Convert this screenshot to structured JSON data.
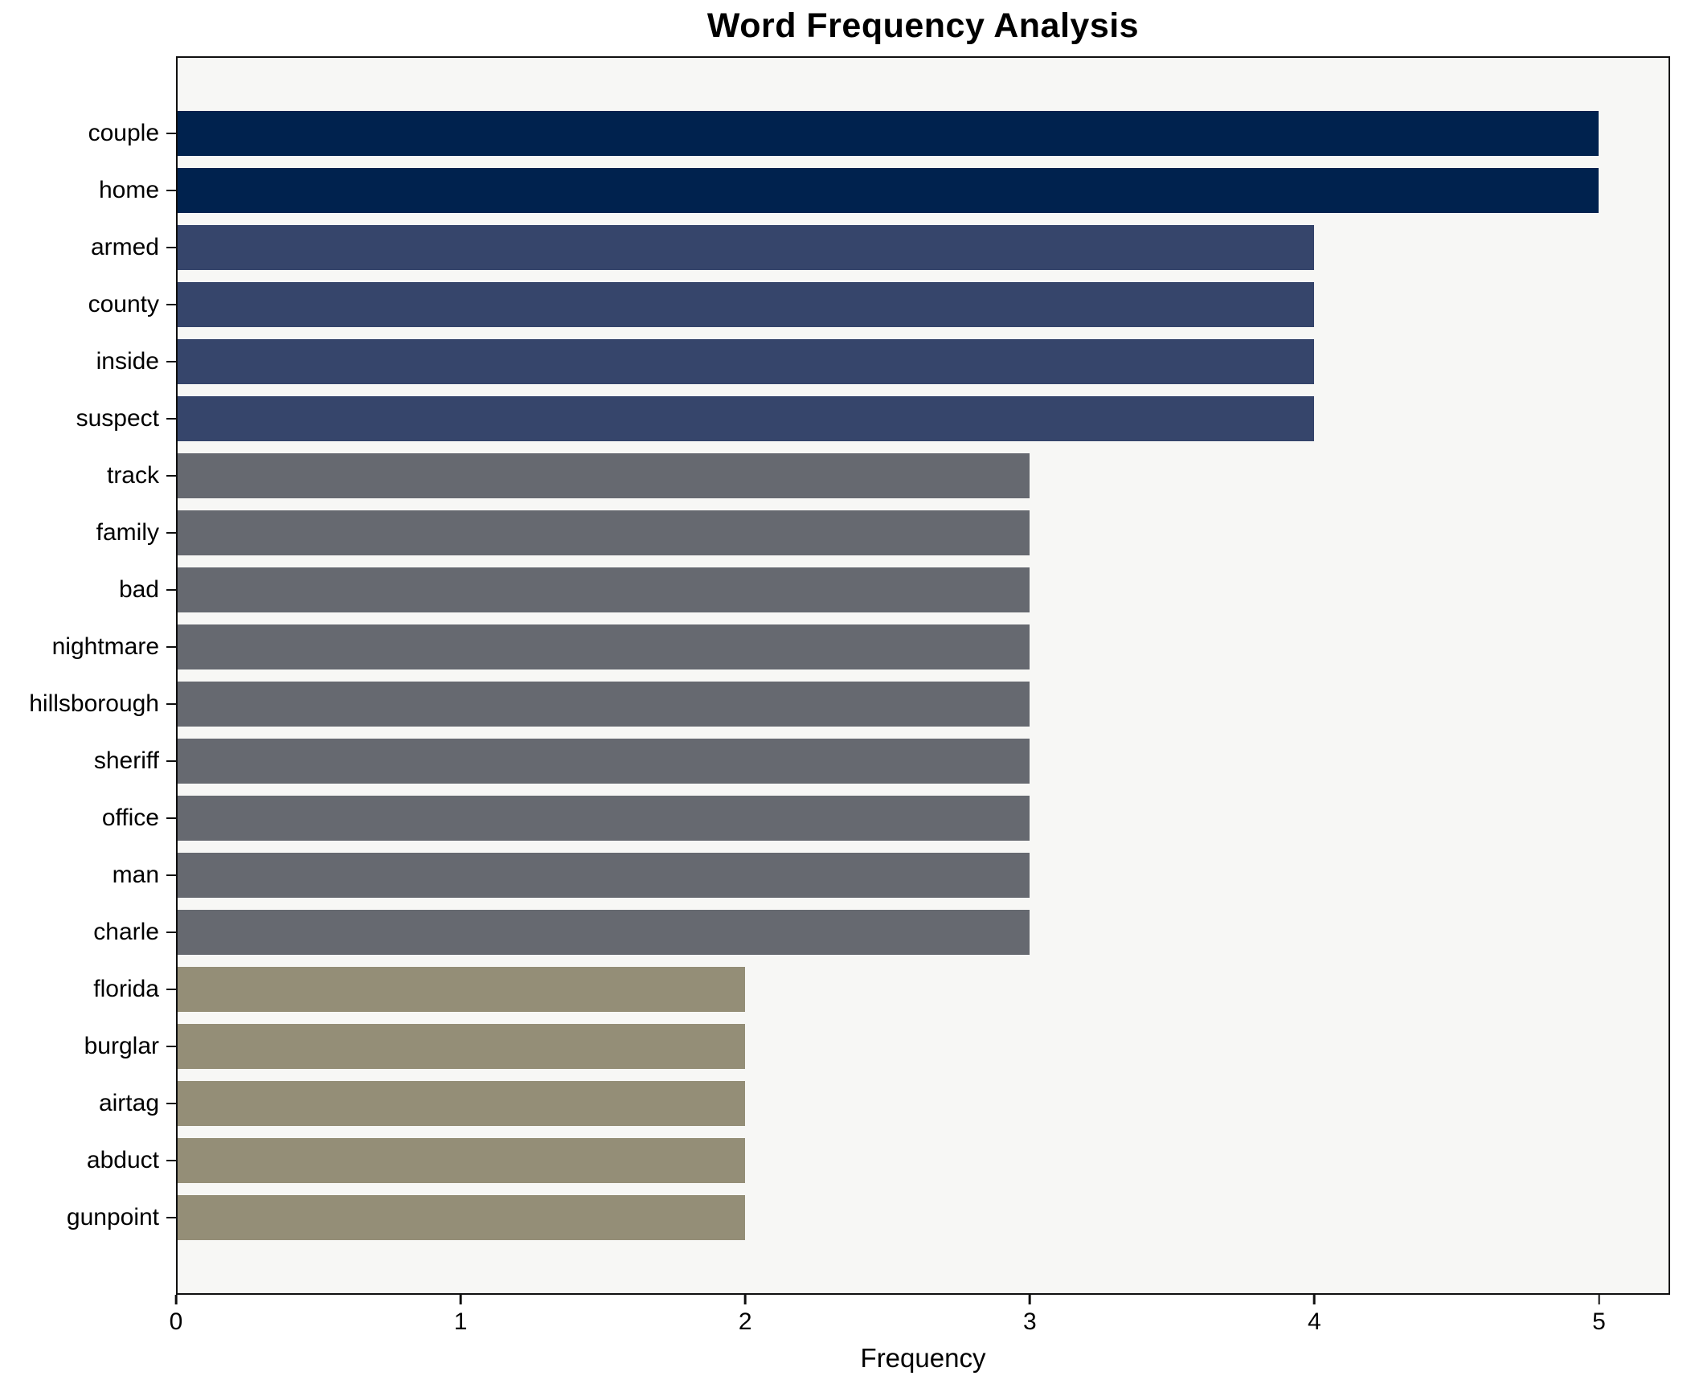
{
  "chart_data": {
    "type": "bar",
    "orientation": "horizontal",
    "title": "Word Frequency Analysis",
    "xlabel": "Frequency",
    "ylabel": "",
    "categories": [
      "couple",
      "home",
      "armed",
      "county",
      "inside",
      "suspect",
      "track",
      "family",
      "bad",
      "nightmare",
      "hillsborough",
      "sheriff",
      "office",
      "man",
      "charle",
      "florida",
      "burglar",
      "airtag",
      "abduct",
      "gunpoint"
    ],
    "values": [
      5,
      5,
      4,
      4,
      4,
      4,
      3,
      3,
      3,
      3,
      3,
      3,
      3,
      3,
      3,
      2,
      2,
      2,
      2,
      2
    ],
    "bar_colors": [
      "#00224e",
      "#00224e",
      "#36456b",
      "#36456b",
      "#36456b",
      "#36456b",
      "#666970",
      "#666970",
      "#666970",
      "#666970",
      "#666970",
      "#666970",
      "#666970",
      "#666970",
      "#666970",
      "#948e77",
      "#948e77",
      "#948e77",
      "#948e77",
      "#948e77"
    ],
    "x_ticks": [
      0,
      1,
      2,
      3,
      4,
      5
    ],
    "xlim": [
      0,
      5.25
    ],
    "grid": false,
    "legend": null,
    "value_labels_shown": false,
    "plot_background": "#f7f7f5",
    "page_background": "#ffffff",
    "spine_color": "#0f0f0f"
  }
}
